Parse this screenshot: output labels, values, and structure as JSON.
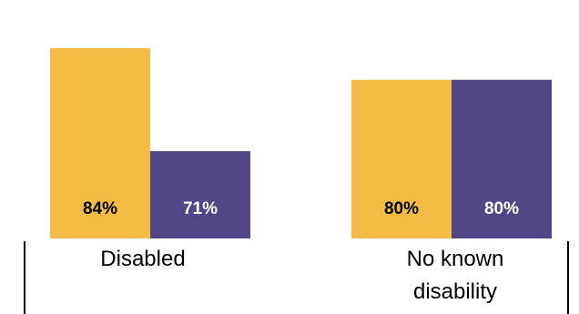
{
  "chart_data": {
    "type": "bar",
    "categories": [
      "Disabled",
      "No known disability"
    ],
    "category_label_lines": [
      [
        "Disabled"
      ],
      [
        "No known",
        "disability"
      ]
    ],
    "series": [
      {
        "values": [
          84,
          80
        ],
        "labels": [
          "84%",
          "80%"
        ],
        "color": "#F5BC45",
        "label_color": "#000000"
      },
      {
        "values": [
          71,
          80
        ],
        "labels": [
          "71%",
          "80%"
        ],
        "color": "#524686",
        "label_color": "#ffffff"
      }
    ],
    "ylim": [
      60,
      88
    ],
    "grid": false,
    "legend": "none",
    "title": "",
    "xlabel": "",
    "ylabel": ""
  }
}
